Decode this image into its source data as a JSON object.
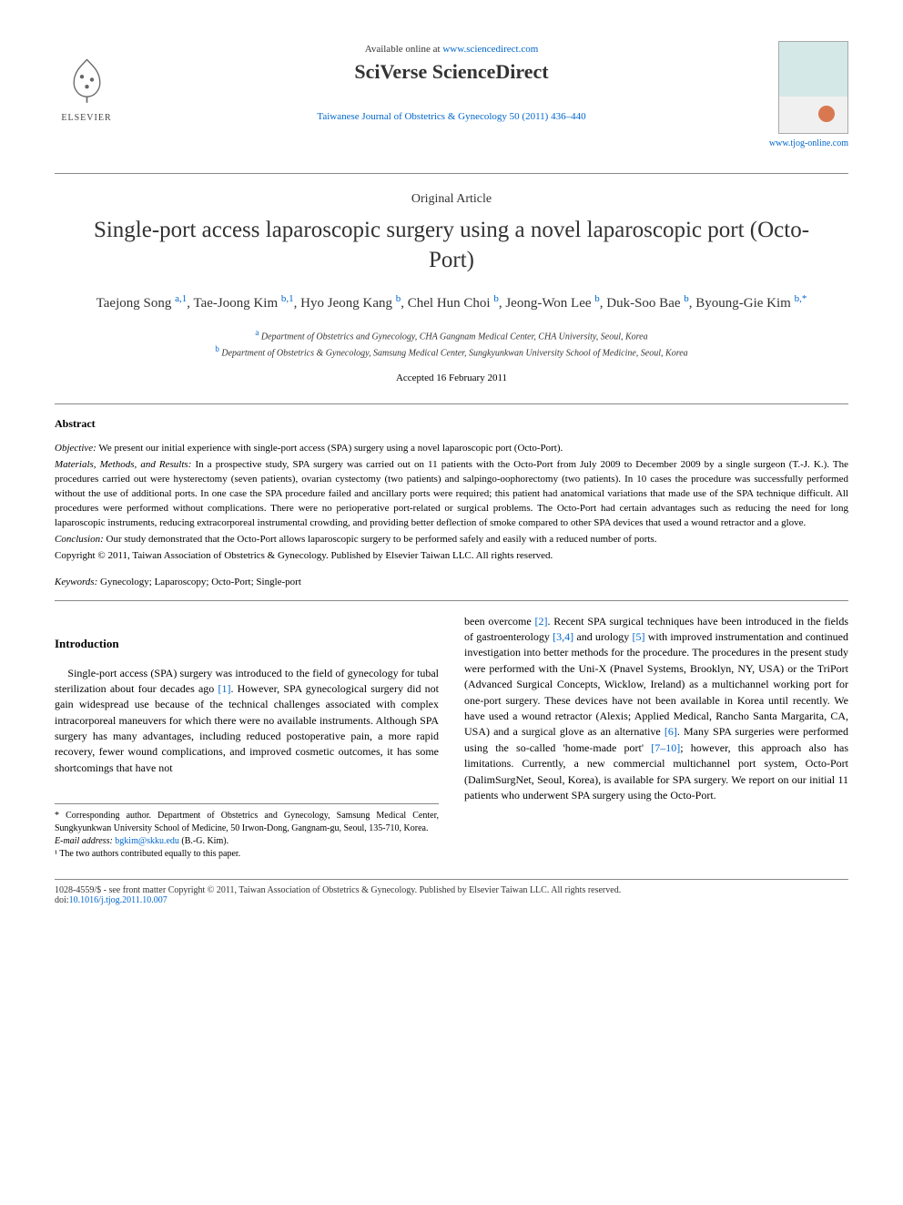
{
  "header": {
    "available_prefix": "Available online at ",
    "available_url": "www.sciencedirect.com",
    "sciverse_brand": "SciVerse ScienceDirect",
    "journal_ref": "Taiwanese Journal of Obstetrics & Gynecology 50 (2011) 436–440",
    "tjog_url": "www.tjog-online.com",
    "elsevier_label": "ELSEVIER"
  },
  "article": {
    "type": "Original Article",
    "title": "Single-port access laparoscopic surgery using a novel laparoscopic port (Octo-Port)",
    "authors_html": "Taejong Song <sup>a,1</sup>, Tae-Joong Kim <sup>b,1</sup>, Hyo Jeong Kang <sup>b</sup>, Chel Hun Choi <sup>b</sup>, Jeong-Won Lee <sup>b</sup>, Duk-Soo Bae <sup>b</sup>, Byoung-Gie Kim <sup>b,*</sup>",
    "authors": [
      {
        "name": "Taejong Song",
        "aff": "a,1"
      },
      {
        "name": "Tae-Joong Kim",
        "aff": "b,1"
      },
      {
        "name": "Hyo Jeong Kang",
        "aff": "b"
      },
      {
        "name": "Chel Hun Choi",
        "aff": "b"
      },
      {
        "name": "Jeong-Won Lee",
        "aff": "b"
      },
      {
        "name": "Duk-Soo Bae",
        "aff": "b"
      },
      {
        "name": "Byoung-Gie Kim",
        "aff": "b,*"
      }
    ],
    "affiliations": {
      "a": "Department of Obstetrics and Gynecology, CHA Gangnam Medical Center, CHA University, Seoul, Korea",
      "b": "Department of Obstetrics & Gynecology, Samsung Medical Center, Sungkyunkwan University School of Medicine, Seoul, Korea"
    },
    "accepted": "Accepted 16 February 2011"
  },
  "abstract": {
    "heading": "Abstract",
    "objective_label": "Objective:",
    "objective": "We present our initial experience with single-port access (SPA) surgery using a novel laparoscopic port (Octo-Port).",
    "methods_label": "Materials, Methods, and Results:",
    "methods": "In a prospective study, SPA surgery was carried out on 11 patients with the Octo-Port from July 2009 to December 2009 by a single surgeon (T.-J. K.). The procedures carried out were hysterectomy (seven patients), ovarian cystectomy (two patients) and salpingo-oophorectomy (two patients). In 10 cases the procedure was successfully performed without the use of additional ports. In one case the SPA procedure failed and ancillary ports were required; this patient had anatomical variations that made use of the SPA technique difficult. All procedures were performed without complications. There were no perioperative port-related or surgical problems. The Octo-Port had certain advantages such as reducing the need for long laparoscopic instruments, reducing extracorporeal instrumental crowding, and providing better deflection of smoke compared to other SPA devices that used a wound retractor and a glove.",
    "conclusion_label": "Conclusion:",
    "conclusion": "Our study demonstrated that the Octo-Port allows laparoscopic surgery to be performed safely and easily with a reduced number of ports.",
    "copyright": "Copyright © 2011, Taiwan Association of Obstetrics & Gynecology. Published by Elsevier Taiwan LLC. All rights reserved."
  },
  "keywords": {
    "label": "Keywords:",
    "list": "Gynecology; Laparoscopy; Octo-Port; Single-port"
  },
  "body": {
    "intro_heading": "Introduction",
    "col1_p1": "Single-port access (SPA) surgery was introduced to the field of gynecology for tubal sterilization about four decades ago [1]. However, SPA gynecological surgery did not gain widespread use because of the technical challenges associated with complex intracorporeal maneuvers for which there were no available instruments. Although SPA surgery has many advantages, including reduced postoperative pain, a more rapid recovery, fewer wound complications, and improved cosmetic outcomes, it has some shortcomings that have not",
    "col2_p1": "been overcome [2]. Recent SPA surgical techniques have been introduced in the fields of gastroenterology [3,4] and urology [5] with improved instrumentation and continued investigation into better methods for the procedure. The procedures in the present study were performed with the Uni-X (Pnavel Systems, Brooklyn, NY, USA) or the TriPort (Advanced Surgical Concepts, Wicklow, Ireland) as a multichannel working port for one-port surgery. These devices have not been available in Korea until recently. We have used a wound retractor (Alexis; Applied Medical, Rancho Santa Margarita, CA, USA) and a surgical glove as an alternative [6]. Many SPA surgeries were performed using the so-called 'home-made port' [7–10]; however, this approach also has limitations. Currently, a new commercial multichannel port system, Octo-Port (DalimSurgNet, Seoul, Korea), is available for SPA surgery. We report on our initial 11 patients who underwent SPA surgery using the Octo-Port."
  },
  "footnotes": {
    "corresponding": "* Corresponding author. Department of Obstetrics and Gynecology, Samsung Medical Center, Sungkyunkwan University School of Medicine, 50 Irwon-Dong, Gangnam-gu, Seoul, 135-710, Korea.",
    "email_label": "E-mail address:",
    "email": "bgkim@skku.edu",
    "email_name": "(B.-G. Kim).",
    "equal": "¹ The two authors contributed equally to this paper."
  },
  "footer": {
    "line1": "1028-4559/$ - see front matter Copyright © 2011, Taiwan Association of Obstetrics & Gynecology. Published by Elsevier Taiwan LLC. All rights reserved.",
    "doi_label": "doi:",
    "doi": "10.1016/j.tjog.2011.10.007"
  },
  "style": {
    "link_color": "#0066cc",
    "text_color": "#333333",
    "rule_color": "#888888",
    "cover_bg_top": "#d4e8e8",
    "cover_dot": "#d97850"
  }
}
